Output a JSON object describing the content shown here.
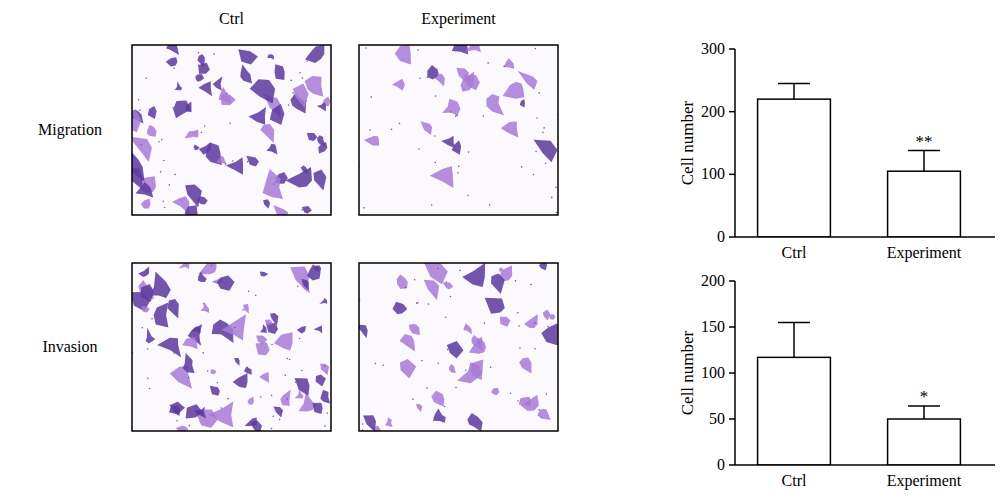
{
  "images": {
    "columns": [
      "Ctrl",
      "Experiment"
    ],
    "rows": [
      "Migration",
      "Invasion"
    ]
  },
  "chart_data": [
    {
      "type": "bar",
      "y_label": "Cell number",
      "categories": [
        "Ctrl",
        "Experiment"
      ],
      "values": [
        220,
        105
      ],
      "errors": [
        25,
        33
      ],
      "color": "#ffffff",
      "ylim": [
        0,
        300
      ],
      "yticks": [
        0,
        100,
        200,
        300
      ],
      "annotations": [
        {
          "category": "Experiment",
          "text": "**"
        }
      ]
    },
    {
      "type": "bar",
      "y_label": "Cell number",
      "categories": [
        "Ctrl",
        "Experiment"
      ],
      "values": [
        117,
        50
      ],
      "errors": [
        38,
        14
      ],
      "color": "#ffffff",
      "ylim": [
        0,
        200
      ],
      "yticks": [
        0,
        50,
        100,
        150,
        200
      ],
      "annotations": [
        {
          "category": "Experiment",
          "text": "*"
        }
      ]
    }
  ]
}
